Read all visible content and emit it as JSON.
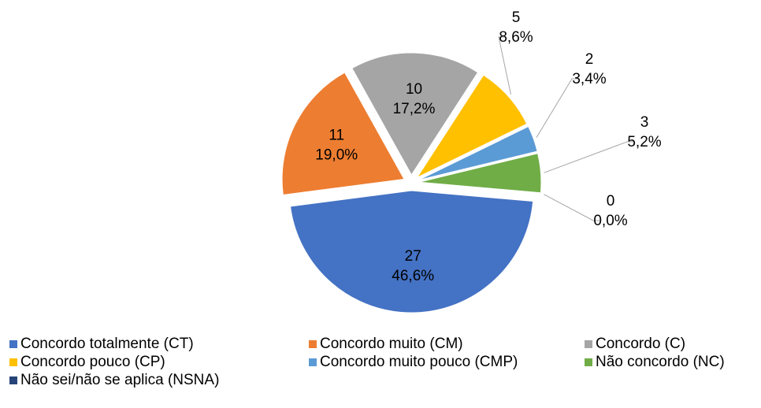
{
  "chart_data": {
    "type": "pie",
    "categories": [
      "Concordo totalmente (CT)",
      "Concordo muito (CM)",
      "Concordo (C)",
      "Concordo pouco (CP)",
      "Concordo muito pouco (CMP)",
      "Não concordo (NC)",
      "Não sei/não se aplica (NSNA)"
    ],
    "values": [
      27,
      11,
      10,
      5,
      2,
      3,
      0
    ],
    "percentages": [
      46.6,
      19.0,
      17.2,
      8.6,
      3.4,
      5.2,
      0.0
    ],
    "percentage_labels": [
      "46,6%",
      "19,0%",
      "17,2%",
      "8,6%",
      "3,4%",
      "5,2%",
      "0,0%"
    ],
    "colors": [
      "#4472c4",
      "#ed7d31",
      "#a5a5a5",
      "#ffc000",
      "#5b9bd5",
      "#70ad47",
      "#264478"
    ],
    "legend": "bottom"
  }
}
